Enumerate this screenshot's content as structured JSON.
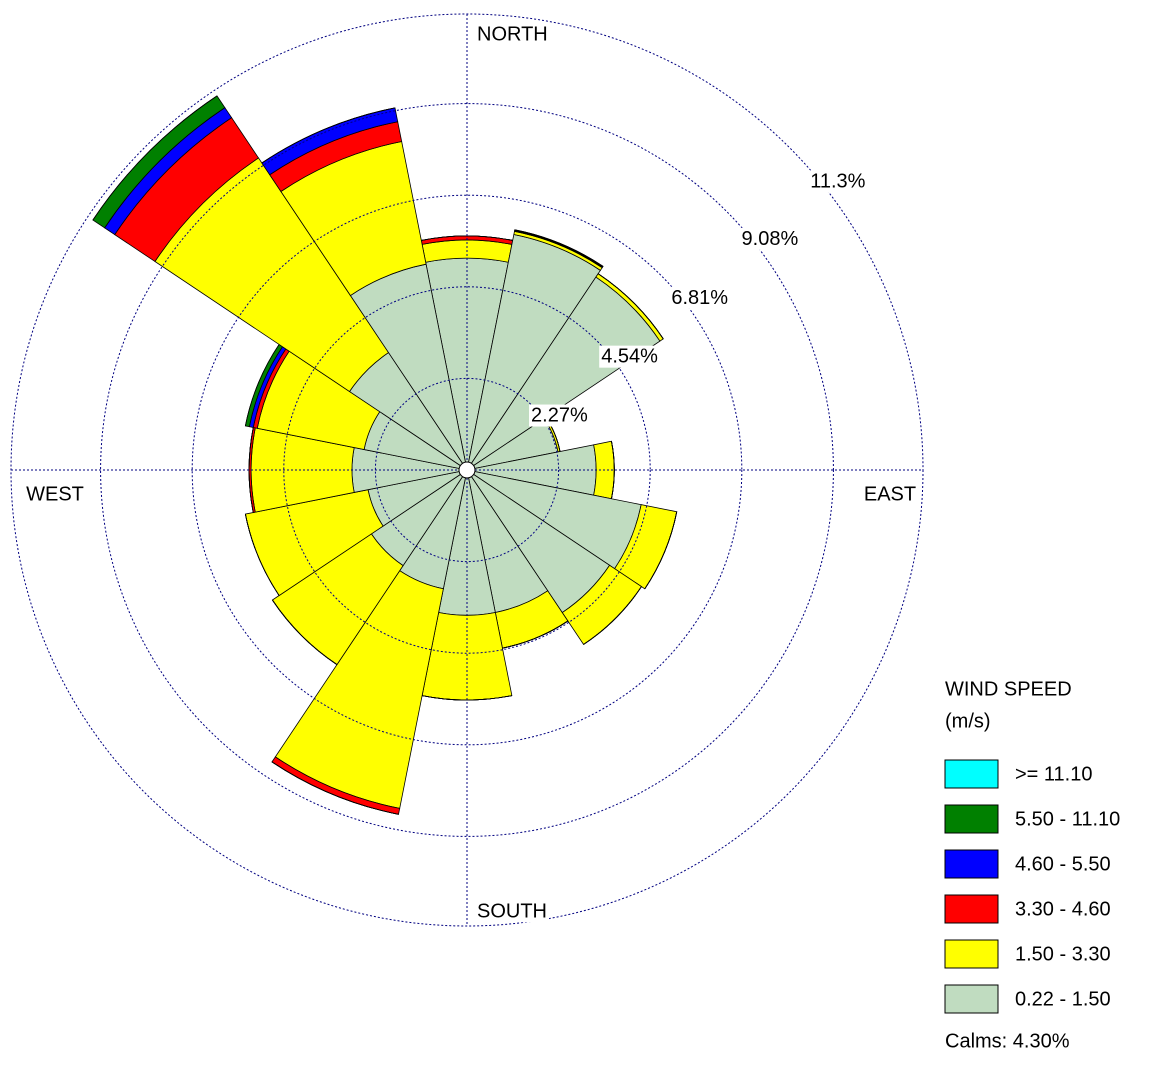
{
  "chart_data": {
    "type": "windrose",
    "compass_labels": [
      "NORTH",
      "EAST",
      "SOUTH",
      "WEST"
    ],
    "rlim": [
      0,
      11.3
    ],
    "rticks": [
      {
        "value": 2.27,
        "label": "2.27%"
      },
      {
        "value": 4.54,
        "label": "4.54%"
      },
      {
        "value": 6.81,
        "label": "6.81%"
      },
      {
        "value": 9.08,
        "label": "9.08%"
      },
      {
        "value": 11.3,
        "label": "11.3%"
      }
    ],
    "grid": true,
    "legend_title": [
      "WIND SPEED",
      "(m/s)"
    ],
    "series": [
      {
        "name": ">= 11.10",
        "color": "#00ffff",
        "values": [
          0,
          0,
          0,
          0,
          0,
          0,
          0,
          0,
          0,
          0,
          0,
          0,
          0,
          0,
          0,
          0
        ]
      },
      {
        "name": "5.50 - 11.10",
        "color": "#008000",
        "values": [
          0,
          0.02,
          0,
          0,
          0,
          0,
          0,
          0,
          0,
          0,
          0,
          0,
          0,
          0.1,
          0.35,
          0
        ]
      },
      {
        "name": "4.60 - 5.50",
        "color": "#0000ff",
        "values": [
          0,
          0,
          0,
          0,
          0,
          0,
          0,
          0,
          0,
          0,
          0,
          0,
          0,
          0.1,
          0.3,
          0.35
        ]
      },
      {
        "name": "3.30 - 4.60",
        "color": "#ff0000",
        "values": [
          0.1,
          0.02,
          0,
          0,
          0,
          0,
          0,
          0,
          0,
          0.15,
          0,
          0,
          0.05,
          0.1,
          1.2,
          0.5
        ]
      },
      {
        "name": "1.50 - 3.30",
        "color": "#ffff00",
        "values": [
          0.45,
          0.08,
          0.1,
          0.05,
          0.45,
          0.9,
          0.95,
          0.9,
          2.1,
          5.55,
          2.95,
          3.1,
          2.5,
          2.7,
          5.8,
          3.1
        ]
      },
      {
        "name": "0.22 - 1.50",
        "color": "#c0dcc0",
        "values": [
          5.25,
          5.95,
          5.75,
          2.3,
          3.2,
          4.4,
          4.25,
          3.6,
          3.6,
          3.0,
          2.85,
          2.5,
          2.85,
          2.6,
          3.5,
          5.2
        ]
      }
    ],
    "calms": 4.3,
    "calms_label": "Calms: 4.30%"
  }
}
